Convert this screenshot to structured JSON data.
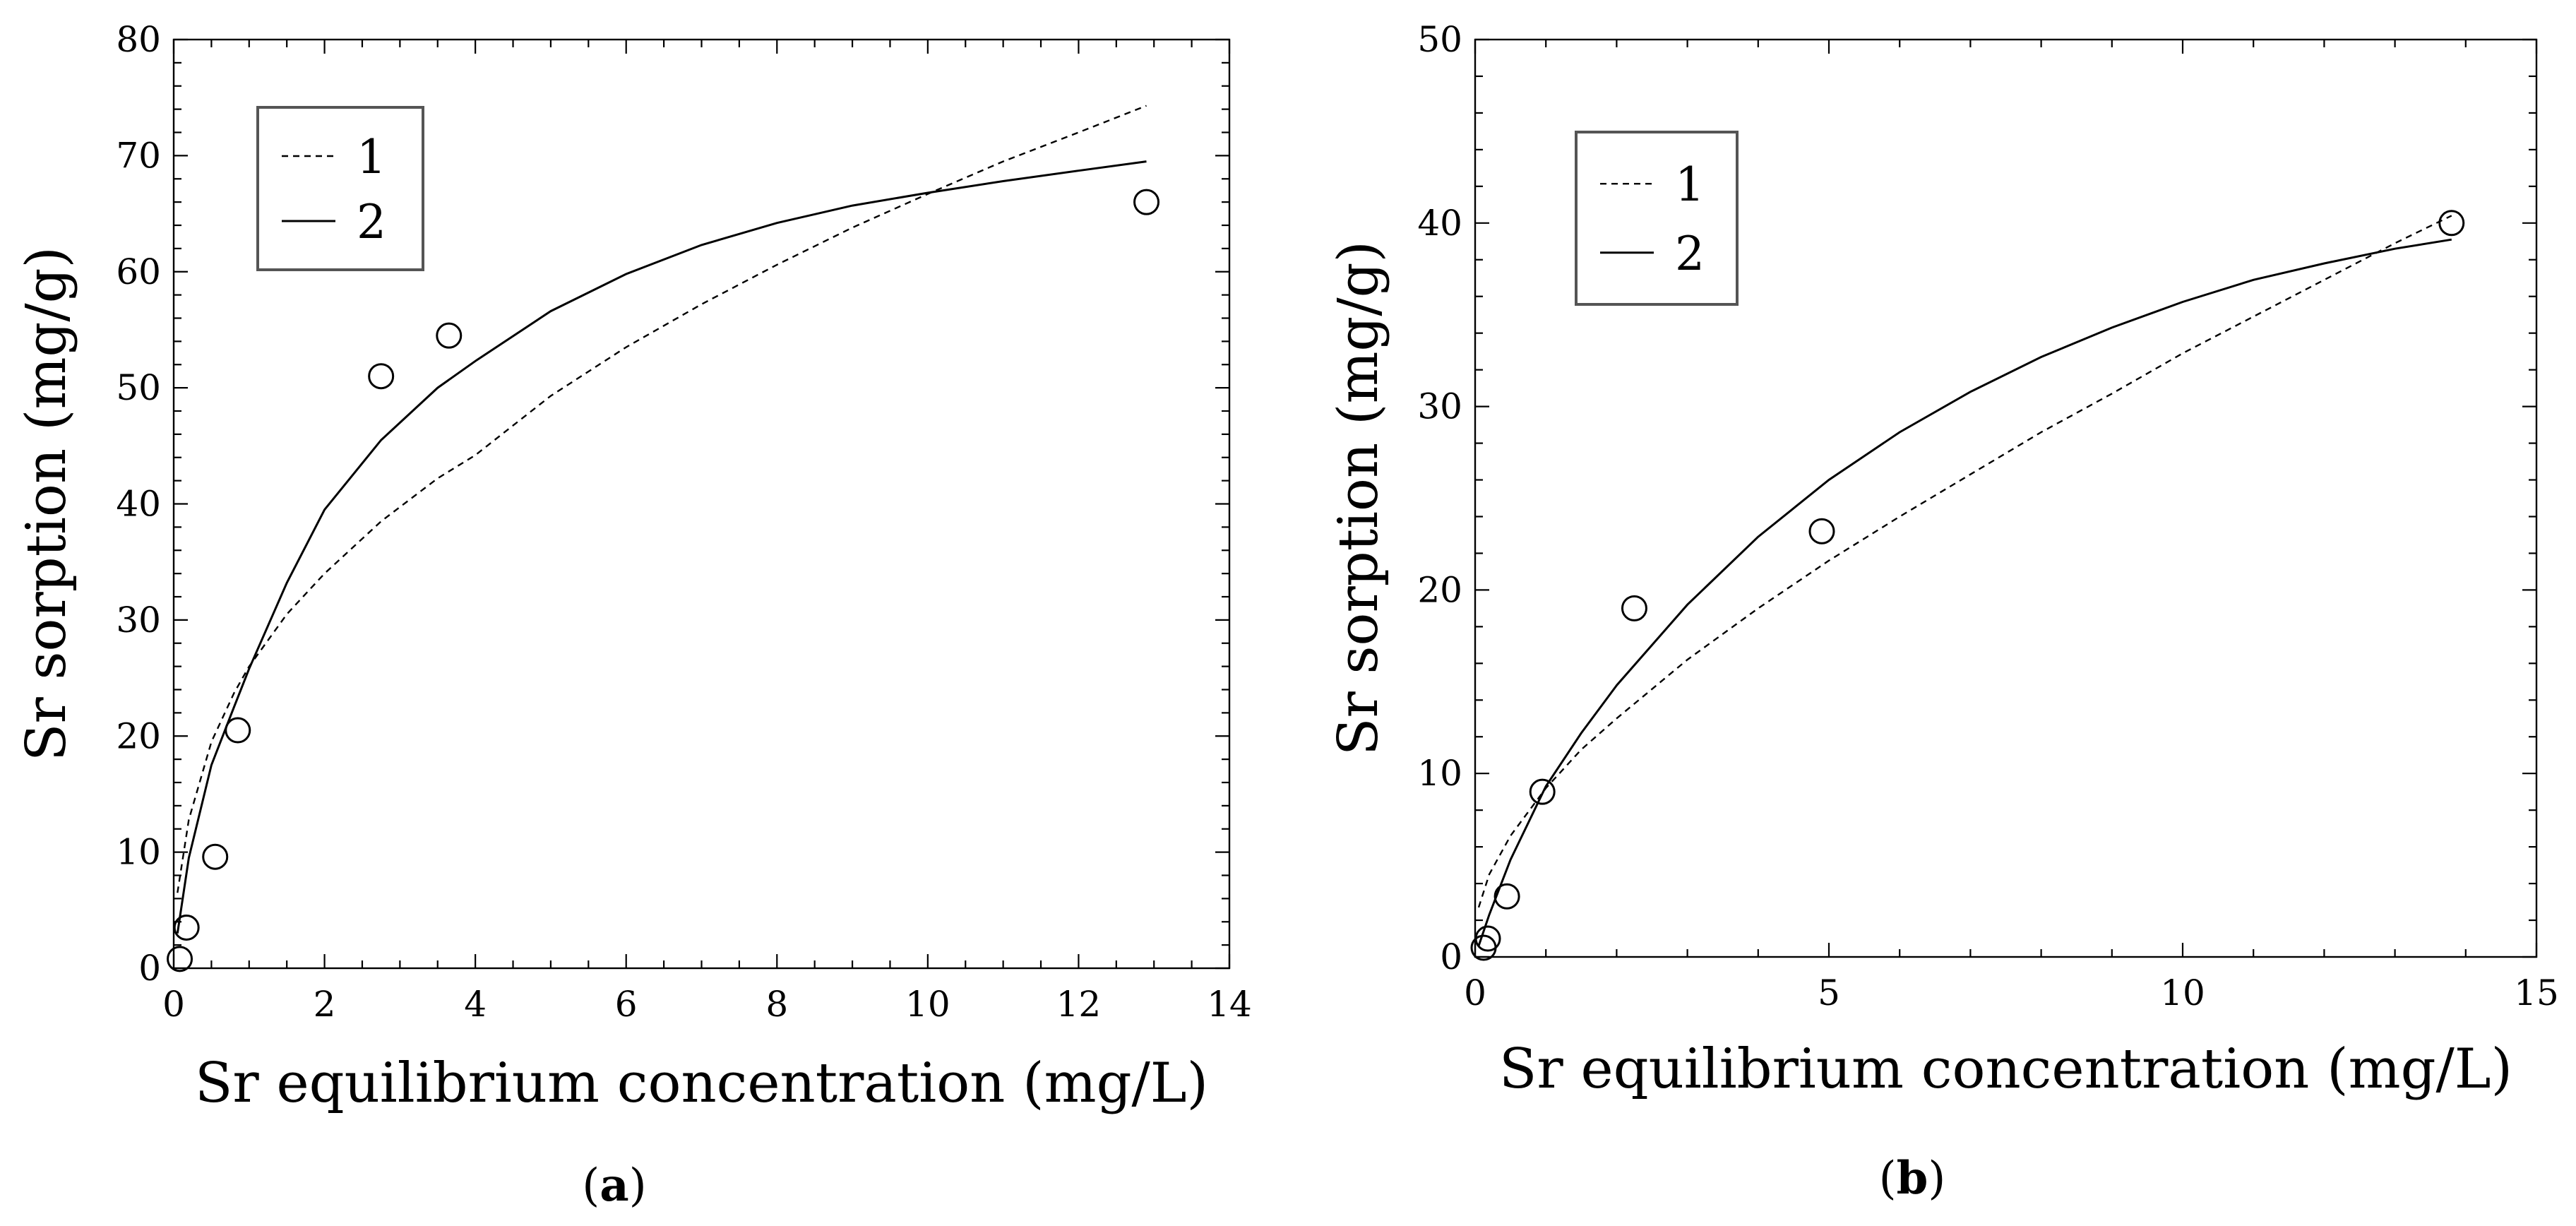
{
  "chart_data": [
    {
      "id": "a",
      "type": "scatter",
      "panel_label": "a",
      "xlabel": "Sr equilibrium concentration (mg/L)",
      "ylabel": "Sr sorption (mg/g)",
      "xlim": [
        0,
        14
      ],
      "ylim": [
        0,
        80
      ],
      "x_ticks": [
        0,
        2,
        4,
        6,
        8,
        10,
        12,
        14
      ],
      "y_ticks": [
        0,
        10,
        20,
        30,
        40,
        50,
        60,
        70,
        80
      ],
      "x_minor_step": 0.5,
      "y_minor_step": 2,
      "legend_position": "top-left",
      "grid": false,
      "points": {
        "x": [
          0.08,
          0.17,
          0.55,
          0.85,
          2.75,
          3.65,
          12.9
        ],
        "y": [
          0.8,
          3.5,
          9.6,
          20.5,
          51.0,
          54.5,
          66.0
        ]
      },
      "series": [
        {
          "name": "1",
          "style": "dashed",
          "x": [
            0.05,
            0.2,
            0.5,
            0.8,
            1.0,
            1.5,
            2.0,
            2.75,
            3.5,
            4.0,
            5.0,
            6.0,
            7.0,
            8.0,
            9.0,
            10.0,
            11.0,
            12.0,
            12.9
          ],
          "y": [
            6.5,
            12.8,
            19.5,
            23.7,
            26.0,
            30.5,
            34.0,
            38.5,
            42.2,
            44.2,
            49.3,
            53.5,
            57.2,
            60.6,
            63.8,
            66.7,
            69.5,
            72.0,
            74.3
          ]
        },
        {
          "name": "2",
          "style": "solid",
          "x": [
            0.05,
            0.2,
            0.5,
            0.8,
            1.0,
            1.5,
            2.0,
            2.75,
            3.5,
            4.0,
            5.0,
            6.0,
            7.0,
            8.0,
            9.0,
            10.0,
            11.0,
            12.0,
            12.9
          ],
          "y": [
            3.0,
            9.5,
            17.5,
            22.5,
            25.8,
            33.2,
            39.5,
            45.5,
            50.0,
            52.3,
            56.6,
            59.8,
            62.3,
            64.2,
            65.7,
            66.8,
            67.8,
            68.7,
            69.5
          ]
        }
      ]
    },
    {
      "id": "b",
      "type": "scatter",
      "panel_label": "b",
      "xlabel": "Sr equilibrium concentration (mg/L)",
      "ylabel": "Sr sorption (mg/g)",
      "xlim": [
        0,
        15
      ],
      "ylim": [
        0,
        50
      ],
      "x_ticks": [
        0,
        5,
        10,
        15
      ],
      "y_ticks": [
        0,
        10,
        20,
        30,
        40,
        50
      ],
      "x_minor_step": 1,
      "y_minor_step": 2,
      "legend_position": "top-left",
      "grid": false,
      "points": {
        "x": [
          0.12,
          0.18,
          0.45,
          0.95,
          2.25,
          4.9,
          13.8
        ],
        "y": [
          0.5,
          1.0,
          3.3,
          9.0,
          19.0,
          23.2,
          40.0
        ]
      },
      "series": [
        {
          "name": "1",
          "style": "dashed",
          "x": [
            0.05,
            0.2,
            0.5,
            1.0,
            1.5,
            2.0,
            3.0,
            4.0,
            5.0,
            6.0,
            7.0,
            8.0,
            9.0,
            10.0,
            11.0,
            12.0,
            13.0,
            13.8
          ],
          "y": [
            2.7,
            4.5,
            6.6,
            9.2,
            11.3,
            13.0,
            16.2,
            19.0,
            21.6,
            24.0,
            26.3,
            28.6,
            30.7,
            32.9,
            34.9,
            36.9,
            38.9,
            40.4
          ]
        },
        {
          "name": "2",
          "style": "solid",
          "x": [
            0.05,
            0.2,
            0.5,
            1.0,
            1.5,
            2.0,
            3.0,
            4.0,
            5.0,
            6.0,
            7.0,
            8.0,
            9.0,
            10.0,
            11.0,
            12.0,
            13.0,
            13.8
          ],
          "y": [
            0.6,
            2.3,
            5.3,
            9.3,
            12.2,
            14.8,
            19.2,
            22.9,
            26.0,
            28.6,
            30.8,
            32.7,
            34.3,
            35.7,
            36.9,
            37.8,
            38.6,
            39.1
          ]
        }
      ]
    }
  ]
}
